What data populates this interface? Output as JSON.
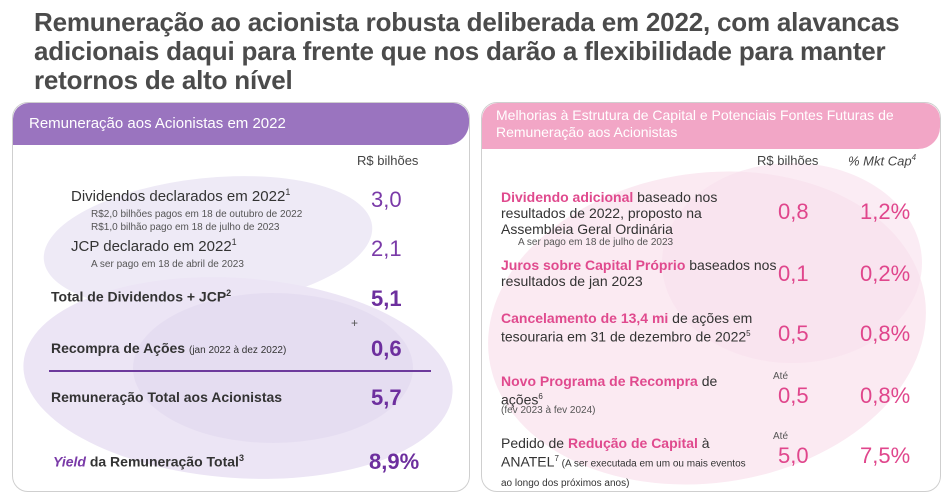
{
  "title": "Remuneração ao acionista robusta deliberada em 2022, com alavancas adicionais daqui para frente que nos darão a flexibilidade para manter retornos de alto nível",
  "left": {
    "header": "Remuneração aos Acionistas em 2022",
    "unit": "R$ bilhões",
    "dividendos_label": "Dividendos declarados em 2022",
    "dividendos_sup": "1",
    "dividendos_value": "3,0",
    "dividendos_note1": "R$2,0 bilhões pagos em 18 de outubro de 2022",
    "dividendos_note2": "R$1,0 bilhão pago em 18 de julho de 2023",
    "jcp_label": "JCP declarado em 2022",
    "jcp_sup": "1",
    "jcp_value": "2,1",
    "jcp_note": "A ser pago em 18 de abril de 2023",
    "total_label": "Total de Dividendos + JCP",
    "total_sup": "2",
    "total_value": "5,1",
    "plus": "+",
    "recompra_label": "Recompra de Ações",
    "recompra_period": "(jan 2022 à dez 2022)",
    "recompra_value": "0,6",
    "remuneracao_label": "Remuneração Total aos Acionistas",
    "remuneracao_value": "5,7",
    "yield_italic": "Yield",
    "yield_label": " da Remuneração Total",
    "yield_sup": "3",
    "yield_value": "8,9%"
  },
  "right": {
    "header": "Melhorias à Estrutura de Capital e Potenciais Fontes Futuras de Remuneração aos Acionistas",
    "unit": "R$ bilhões",
    "unit2": "% Mkt Cap",
    "unit2_sup": "4",
    "rows": [
      {
        "bold": "Dividendo adicional",
        "text": " baseado nos resultados de 2022, proposto na Assembleia Geral Ordinária",
        "note": "A ser pago em 18 de julho de 2023",
        "value": "0,8",
        "pct": "1,2%"
      },
      {
        "bold": "Juros sobre Capital Próprio",
        "text": " baseados nos resultados de jan 2023",
        "value": "0,1",
        "pct": "0,2%"
      },
      {
        "bold": "Cancelamento de 13,4 mi",
        "text": " de ações em tesouraria em 31 de dezembro de 2022",
        "sup": "5",
        "value": "0,5",
        "pct": "0,8%"
      },
      {
        "bold": "Novo Programa de Recompra",
        "text": " de ações",
        "sup": "6",
        "note": "(fev 2023 à fev 2024)",
        "ate": "Até",
        "value": "0,5",
        "pct": "0,8%"
      },
      {
        "pre": "Pedido de ",
        "bold": "Redução de Capital",
        "text": " à ANATEL",
        "sup": "7",
        "note": "A ser executada em um ou mais eventos ao longo dos próximos anos)",
        "note_prefix": " (",
        "ate": "Até",
        "value": "5,0",
        "pct": "7,5%"
      }
    ]
  },
  "colors": {
    "purple": "#9a74bf",
    "pink": "#f2a6c6",
    "accent_purple": "#6d2f9e",
    "accent_pink": "#e0468c"
  }
}
